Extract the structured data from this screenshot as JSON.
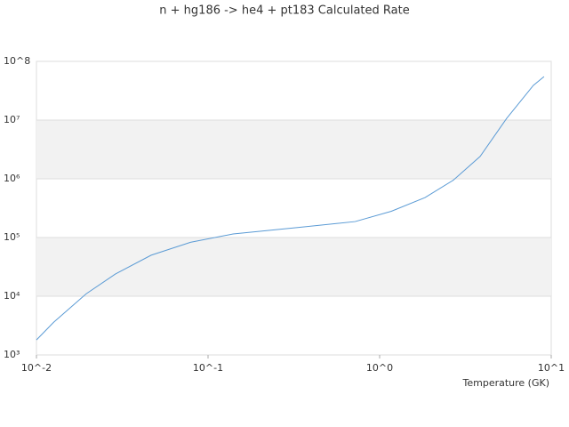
{
  "chart_data": {
    "type": "line",
    "title": "n + hg186 -> he4 + pt183 Calculated Rate",
    "x_label": "Temperature (GK)",
    "log_x": true,
    "log_y": true,
    "xlim": [
      0.01,
      10
    ],
    "ylim": [
      1000,
      100000000
    ],
    "xticks": [
      {
        "value": 0.01,
        "label": "10^-2"
      },
      {
        "value": 0.1,
        "label": "10^-1"
      },
      {
        "value": 1,
        "label": "10^0"
      },
      {
        "value": 10,
        "label": "10^1"
      }
    ],
    "yticks": [
      {
        "value": 1000,
        "label": "10³"
      },
      {
        "value": 10000,
        "label": "10⁴"
      },
      {
        "value": 100000,
        "label": "10⁵"
      },
      {
        "value": 1000000,
        "label": "10⁶"
      },
      {
        "value": 10000000,
        "label": "10⁷"
      },
      {
        "value": 100000000,
        "label": "10^8"
      }
    ],
    "grid_bands": true,
    "series": [
      {
        "color": "#5b9bd5",
        "x": [
          0.01,
          0.0126,
          0.0195,
          0.0289,
          0.0466,
          0.079,
          0.14,
          0.333,
          0.72,
          1.17,
          1.84,
          2.69,
          3.85,
          5.5,
          7.87,
          9.08
        ],
        "values": [
          1800,
          3600,
          11000,
          24000,
          50000,
          83000,
          115000,
          148000,
          187000,
          280000,
          480000,
          950000,
          2400000,
          10700000,
          39000000,
          55000000
        ]
      }
    ]
  }
}
